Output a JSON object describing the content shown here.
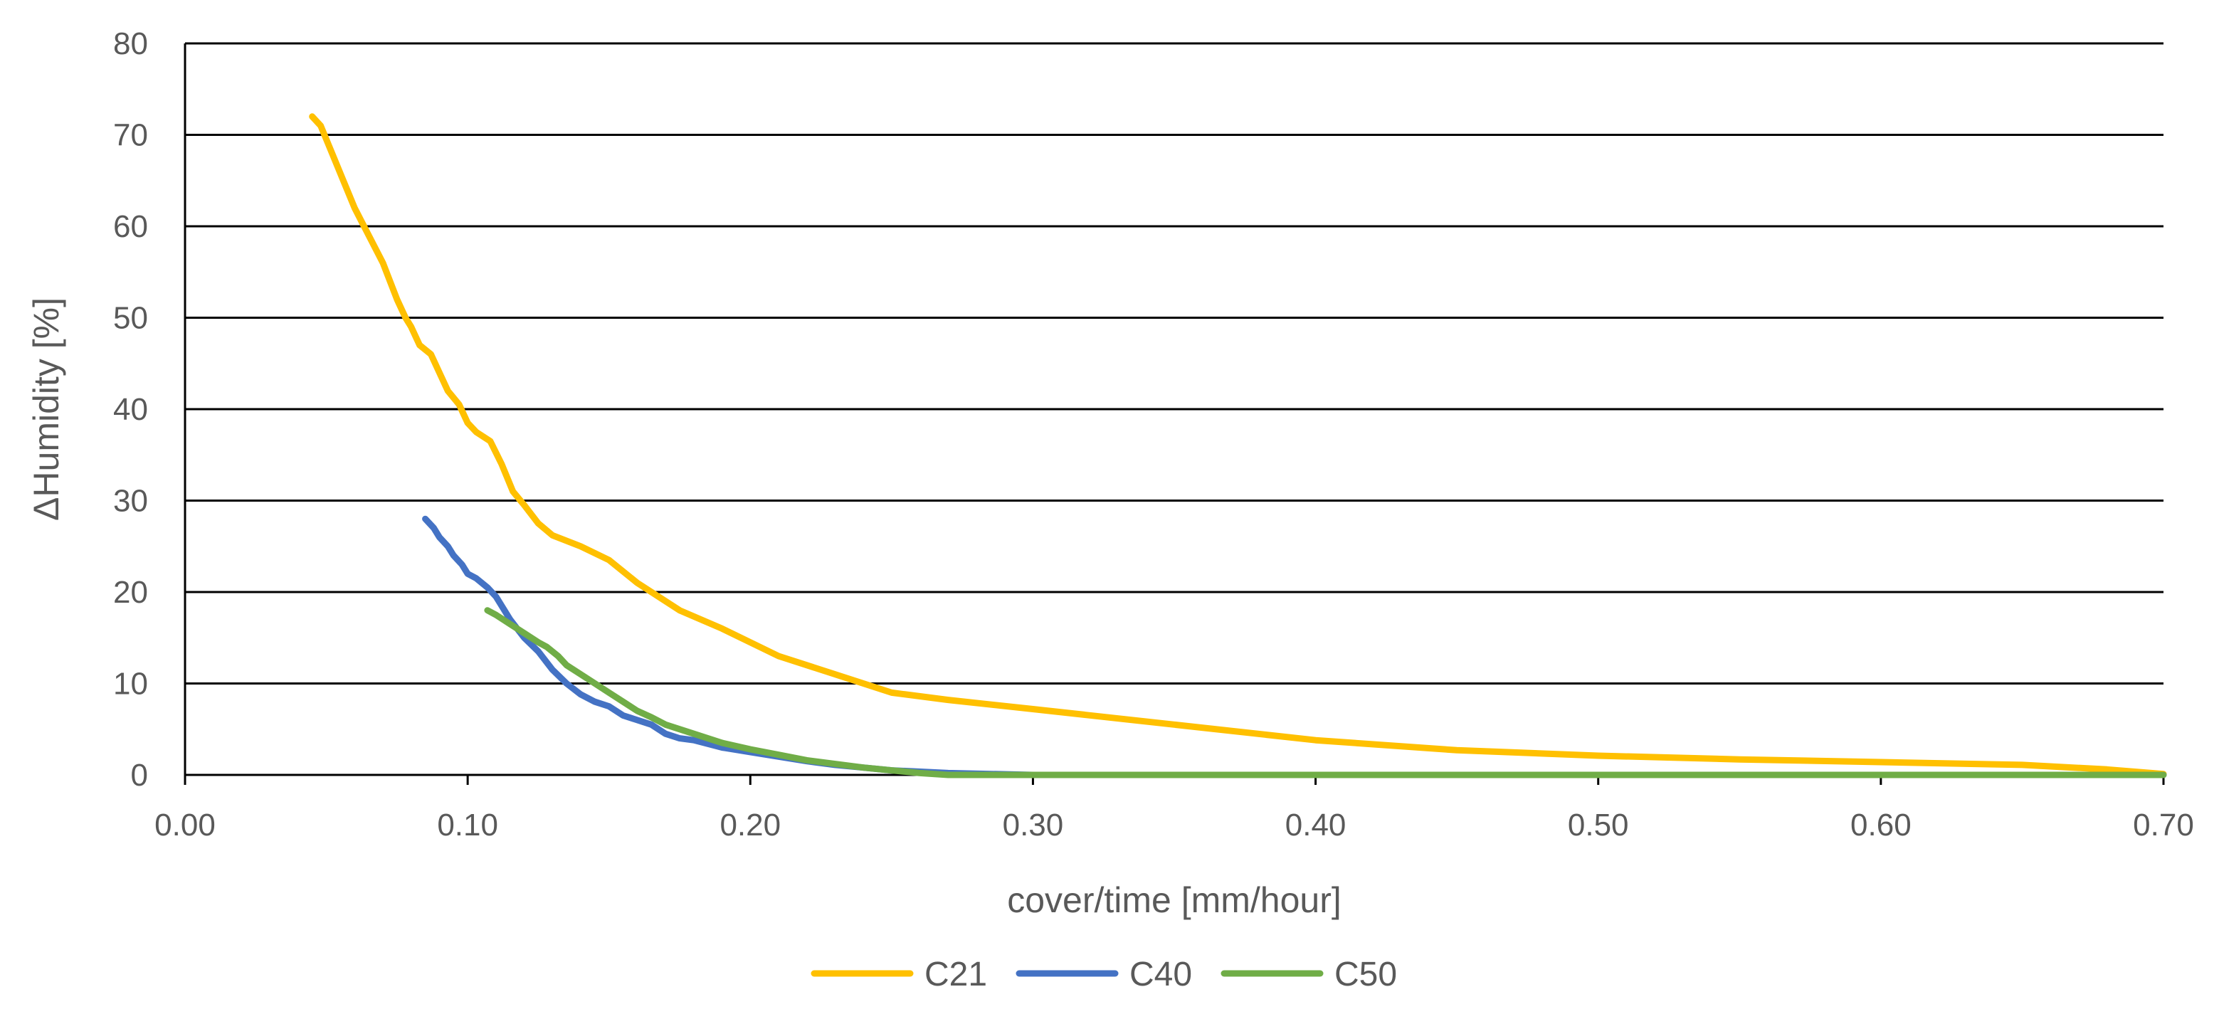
{
  "chart_data": {
    "type": "line",
    "title": "",
    "xlabel": "cover/time [mm/hour]",
    "ylabel": "ΔHumidity [%]",
    "xlim": [
      0,
      0.7
    ],
    "ylim": [
      0,
      80
    ],
    "x_ticks": [
      "0.00",
      "0.10",
      "0.20",
      "0.30",
      "0.40",
      "0.50",
      "0.60",
      "0.70"
    ],
    "y_ticks": [
      "0",
      "10",
      "20",
      "30",
      "40",
      "50",
      "60",
      "70",
      "80"
    ],
    "grid": "horizontal",
    "legend_position": "bottom",
    "series": [
      {
        "name": "C21",
        "color": "#FFC000",
        "points": [
          [
            0.045,
            72
          ],
          [
            0.048,
            71
          ],
          [
            0.052,
            68
          ],
          [
            0.056,
            65
          ],
          [
            0.06,
            62
          ],
          [
            0.065,
            59
          ],
          [
            0.07,
            56
          ],
          [
            0.075,
            52
          ],
          [
            0.078,
            50
          ],
          [
            0.08,
            49
          ],
          [
            0.083,
            47
          ],
          [
            0.087,
            46
          ],
          [
            0.09,
            44
          ],
          [
            0.093,
            42
          ],
          [
            0.097,
            40.5
          ],
          [
            0.1,
            38.5
          ],
          [
            0.103,
            37.5
          ],
          [
            0.108,
            36.5
          ],
          [
            0.112,
            34
          ],
          [
            0.116,
            31
          ],
          [
            0.12,
            29.5
          ],
          [
            0.125,
            27.5
          ],
          [
            0.13,
            26.2
          ],
          [
            0.14,
            25
          ],
          [
            0.15,
            23.5
          ],
          [
            0.16,
            21
          ],
          [
            0.175,
            18
          ],
          [
            0.19,
            16
          ],
          [
            0.21,
            13
          ],
          [
            0.23,
            11
          ],
          [
            0.25,
            9
          ],
          [
            0.27,
            8.2
          ],
          [
            0.3,
            7.2
          ],
          [
            0.35,
            5.5
          ],
          [
            0.4,
            3.8
          ],
          [
            0.45,
            2.7
          ],
          [
            0.5,
            2.1
          ],
          [
            0.55,
            1.7
          ],
          [
            0.6,
            1.4
          ],
          [
            0.65,
            1.1
          ],
          [
            0.68,
            0.6
          ],
          [
            0.7,
            0.1
          ]
        ]
      },
      {
        "name": "C40",
        "color": "#4472C4",
        "points": [
          [
            0.085,
            28
          ],
          [
            0.088,
            27
          ],
          [
            0.09,
            26
          ],
          [
            0.093,
            25
          ],
          [
            0.095,
            24
          ],
          [
            0.098,
            23
          ],
          [
            0.1,
            22
          ],
          [
            0.103,
            21.5
          ],
          [
            0.107,
            20.5
          ],
          [
            0.11,
            19.5
          ],
          [
            0.115,
            17
          ],
          [
            0.12,
            15
          ],
          [
            0.125,
            13.5
          ],
          [
            0.13,
            11.5
          ],
          [
            0.135,
            10
          ],
          [
            0.14,
            8.8
          ],
          [
            0.145,
            8
          ],
          [
            0.15,
            7.5
          ],
          [
            0.155,
            6.5
          ],
          [
            0.16,
            6
          ],
          [
            0.165,
            5.5
          ],
          [
            0.17,
            4.5
          ],
          [
            0.175,
            4
          ],
          [
            0.18,
            3.8
          ],
          [
            0.19,
            3
          ],
          [
            0.2,
            2.5
          ],
          [
            0.21,
            2
          ],
          [
            0.22,
            1.5
          ],
          [
            0.23,
            1.1
          ],
          [
            0.24,
            0.8
          ],
          [
            0.25,
            0.5
          ],
          [
            0.27,
            0.2
          ],
          [
            0.3,
            0
          ],
          [
            0.7,
            0
          ]
        ]
      },
      {
        "name": "C50",
        "color": "#70AD47",
        "points": [
          [
            0.107,
            18
          ],
          [
            0.11,
            17.5
          ],
          [
            0.115,
            16.5
          ],
          [
            0.12,
            15.5
          ],
          [
            0.125,
            14.5
          ],
          [
            0.128,
            14
          ],
          [
            0.132,
            13
          ],
          [
            0.135,
            12
          ],
          [
            0.14,
            11
          ],
          [
            0.145,
            10
          ],
          [
            0.15,
            9
          ],
          [
            0.155,
            8
          ],
          [
            0.16,
            7
          ],
          [
            0.165,
            6.3
          ],
          [
            0.17,
            5.5
          ],
          [
            0.18,
            4.5
          ],
          [
            0.19,
            3.5
          ],
          [
            0.2,
            2.8
          ],
          [
            0.21,
            2.2
          ],
          [
            0.22,
            1.6
          ],
          [
            0.23,
            1.2
          ],
          [
            0.24,
            0.8
          ],
          [
            0.25,
            0.5
          ],
          [
            0.26,
            0.2
          ],
          [
            0.27,
            0
          ],
          [
            0.7,
            0
          ]
        ]
      }
    ]
  }
}
